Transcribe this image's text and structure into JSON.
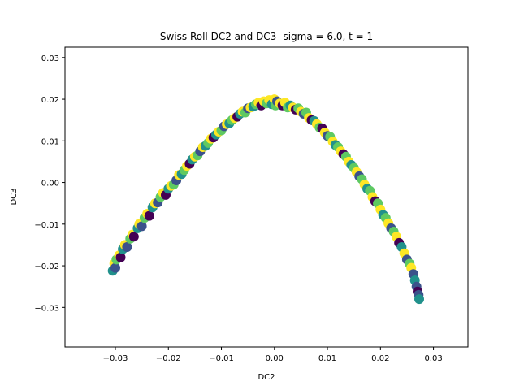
{
  "chart_data": {
    "type": "scatter",
    "title": "Swiss Roll DC2 and DC3- sigma = 6.0, t = 1",
    "xlabel": "DC2",
    "ylabel": "DC3",
    "xlim": [
      -0.0395,
      0.0365
    ],
    "ylim": [
      -0.0395,
      0.0325
    ],
    "xticks": [
      -0.03,
      -0.02,
      -0.01,
      0.0,
      0.01,
      0.02,
      0.03
    ],
    "xtick_labels": [
      "−0.03",
      "−0.02",
      "−0.01",
      "0.00",
      "0.01",
      "0.02",
      "0.03"
    ],
    "yticks": [
      -0.03,
      -0.02,
      -0.01,
      0.0,
      0.01,
      0.02,
      0.03
    ],
    "ytick_labels": [
      "−0.03",
      "−0.02",
      "−0.01",
      "0.00",
      "0.01",
      "0.02",
      "0.03"
    ],
    "grid": false,
    "legend": "none",
    "colormap": "viridis",
    "colors": [
      "#440154",
      "#3b528b",
      "#21918c",
      "#5ec962",
      "#fde725"
    ],
    "points": [
      [
        -0.0305,
        -0.0212,
        2
      ],
      [
        -0.0302,
        -0.0195,
        4
      ],
      [
        -0.03,
        -0.0205,
        1
      ],
      [
        -0.0298,
        -0.0185,
        3
      ],
      [
        -0.0293,
        -0.0175,
        4
      ],
      [
        -0.029,
        -0.018,
        0
      ],
      [
        -0.0286,
        -0.016,
        2
      ],
      [
        -0.0282,
        -0.015,
        4
      ],
      [
        -0.0278,
        -0.0155,
        1
      ],
      [
        -0.0272,
        -0.0135,
        3
      ],
      [
        -0.0268,
        -0.0125,
        4
      ],
      [
        -0.0265,
        -0.013,
        0
      ],
      [
        -0.0258,
        -0.011,
        2
      ],
      [
        -0.0255,
        -0.01,
        4
      ],
      [
        -0.025,
        -0.0105,
        1
      ],
      [
        -0.0245,
        -0.0085,
        3
      ],
      [
        -0.024,
        -0.0075,
        4
      ],
      [
        -0.0236,
        -0.008,
        0
      ],
      [
        -0.023,
        -0.006,
        2
      ],
      [
        -0.0225,
        -0.005,
        4
      ],
      [
        -0.022,
        -0.0048,
        1
      ],
      [
        -0.0215,
        -0.0035,
        3
      ],
      [
        -0.021,
        -0.0025,
        4
      ],
      [
        -0.0205,
        -0.003,
        0
      ],
      [
        -0.02,
        -0.0015,
        2
      ],
      [
        -0.0195,
        -0.0008,
        4
      ],
      [
        -0.019,
        -0.0005,
        3
      ],
      [
        -0.0185,
        0.0005,
        1
      ],
      [
        -0.018,
        0.0018,
        4
      ],
      [
        -0.0175,
        0.002,
        2
      ],
      [
        -0.017,
        0.003,
        3
      ],
      [
        -0.0165,
        0.004,
        4
      ],
      [
        -0.016,
        0.0045,
        0
      ],
      [
        -0.0155,
        0.0055,
        2
      ],
      [
        -0.015,
        0.0062,
        4
      ],
      [
        -0.0145,
        0.0065,
        3
      ],
      [
        -0.014,
        0.0075,
        1
      ],
      [
        -0.0135,
        0.0085,
        4
      ],
      [
        -0.013,
        0.0088,
        2
      ],
      [
        -0.0125,
        0.0095,
        3
      ],
      [
        -0.012,
        0.0105,
        4
      ],
      [
        -0.0115,
        0.0108,
        0
      ],
      [
        -0.011,
        0.0115,
        2
      ],
      [
        -0.0105,
        0.0122,
        4
      ],
      [
        -0.01,
        0.0125,
        3
      ],
      [
        -0.0095,
        0.0135,
        1
      ],
      [
        -0.009,
        0.014,
        4
      ],
      [
        -0.0085,
        0.0142,
        2
      ],
      [
        -0.008,
        0.015,
        3
      ],
      [
        -0.0075,
        0.0155,
        4
      ],
      [
        -0.007,
        0.0158,
        0
      ],
      [
        -0.0065,
        0.0165,
        2
      ],
      [
        -0.006,
        0.017,
        4
      ],
      [
        -0.0055,
        0.0168,
        3
      ],
      [
        -0.005,
        0.0178,
        1
      ],
      [
        -0.0045,
        0.018,
        4
      ],
      [
        -0.004,
        0.0182,
        2
      ],
      [
        -0.0035,
        0.0188,
        3
      ],
      [
        -0.003,
        0.0192,
        4
      ],
      [
        -0.0025,
        0.0185,
        0
      ],
      [
        -0.002,
        0.0195,
        4
      ],
      [
        -0.0015,
        0.019,
        3
      ],
      [
        -0.001,
        0.0198,
        4
      ],
      [
        -0.0005,
        0.0188,
        2
      ],
      [
        0.0,
        0.02,
        4
      ],
      [
        0.0002,
        0.0185,
        3
      ],
      [
        0.0005,
        0.0195,
        1
      ],
      [
        0.001,
        0.019,
        4
      ],
      [
        0.0015,
        0.0185,
        0
      ],
      [
        0.002,
        0.0192,
        4
      ],
      [
        0.0025,
        0.018,
        3
      ],
      [
        0.003,
        0.0185,
        2
      ],
      [
        0.0035,
        0.018,
        4
      ],
      [
        0.004,
        0.0175,
        0
      ],
      [
        0.0045,
        0.0178,
        3
      ],
      [
        0.005,
        0.017,
        4
      ],
      [
        0.0055,
        0.0165,
        1
      ],
      [
        0.006,
        0.0168,
        3
      ],
      [
        0.0065,
        0.0155,
        4
      ],
      [
        0.007,
        0.015,
        0
      ],
      [
        0.0075,
        0.0148,
        2
      ],
      [
        0.008,
        0.014,
        4
      ],
      [
        0.0085,
        0.0132,
        3
      ],
      [
        0.009,
        0.013,
        0
      ],
      [
        0.0095,
        0.012,
        4
      ],
      [
        0.01,
        0.0112,
        1
      ],
      [
        0.0105,
        0.011,
        3
      ],
      [
        0.011,
        0.0098,
        4
      ],
      [
        0.0115,
        0.009,
        2
      ],
      [
        0.012,
        0.0085,
        3
      ],
      [
        0.0125,
        0.0075,
        4
      ],
      [
        0.013,
        0.0068,
        0
      ],
      [
        0.0135,
        0.0062,
        3
      ],
      [
        0.014,
        0.005,
        4
      ],
      [
        0.0145,
        0.0042,
        2
      ],
      [
        0.015,
        0.0035,
        3
      ],
      [
        0.0155,
        0.0025,
        4
      ],
      [
        0.016,
        0.0015,
        1
      ],
      [
        0.0165,
        0.0008,
        3
      ],
      [
        0.017,
        -0.0005,
        4
      ],
      [
        0.0175,
        -0.0015,
        2
      ],
      [
        0.018,
        -0.002,
        3
      ],
      [
        0.0185,
        -0.0035,
        4
      ],
      [
        0.019,
        -0.0045,
        0
      ],
      [
        0.0195,
        -0.005,
        3
      ],
      [
        0.02,
        -0.0065,
        4
      ],
      [
        0.0205,
        -0.0078,
        2
      ],
      [
        0.021,
        -0.0085,
        3
      ],
      [
        0.0215,
        -0.0098,
        4
      ],
      [
        0.022,
        -0.011,
        1
      ],
      [
        0.0225,
        -0.0118,
        3
      ],
      [
        0.023,
        -0.013,
        4
      ],
      [
        0.0235,
        -0.0145,
        0
      ],
      [
        0.024,
        -0.0155,
        2
      ],
      [
        0.0245,
        -0.017,
        4
      ],
      [
        0.025,
        -0.0185,
        1
      ],
      [
        0.0255,
        -0.0195,
        3
      ],
      [
        0.0258,
        -0.0205,
        4
      ],
      [
        0.0262,
        -0.022,
        1
      ],
      [
        0.0265,
        -0.0235,
        2
      ],
      [
        0.0268,
        -0.025,
        1
      ],
      [
        0.027,
        -0.0262,
        0
      ],
      [
        0.0272,
        -0.027,
        1
      ],
      [
        0.0273,
        -0.028,
        2
      ]
    ]
  }
}
